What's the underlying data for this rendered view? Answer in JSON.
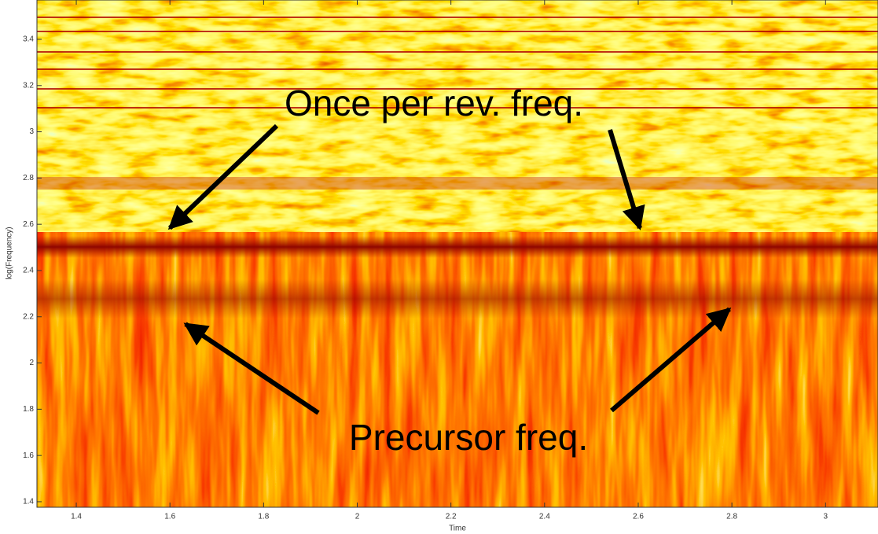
{
  "chart_data": {
    "type": "spectrogram",
    "x_label": "Time",
    "y_label": "log(Frequency)",
    "xlim": [
      1.316,
      3.112
    ],
    "xticks": [
      1.4,
      1.6,
      1.8,
      2,
      2.2,
      2.4,
      2.6,
      2.8,
      3
    ],
    "ylim": [
      1.376,
      3.57
    ],
    "yticks": [
      1.4,
      1.6,
      1.8,
      2,
      2.2,
      2.4,
      2.6,
      2.8,
      3,
      3.2,
      3.4
    ],
    "annotations": [
      "Once per rev. freq.",
      "Precursor freq."
    ]
  }
}
